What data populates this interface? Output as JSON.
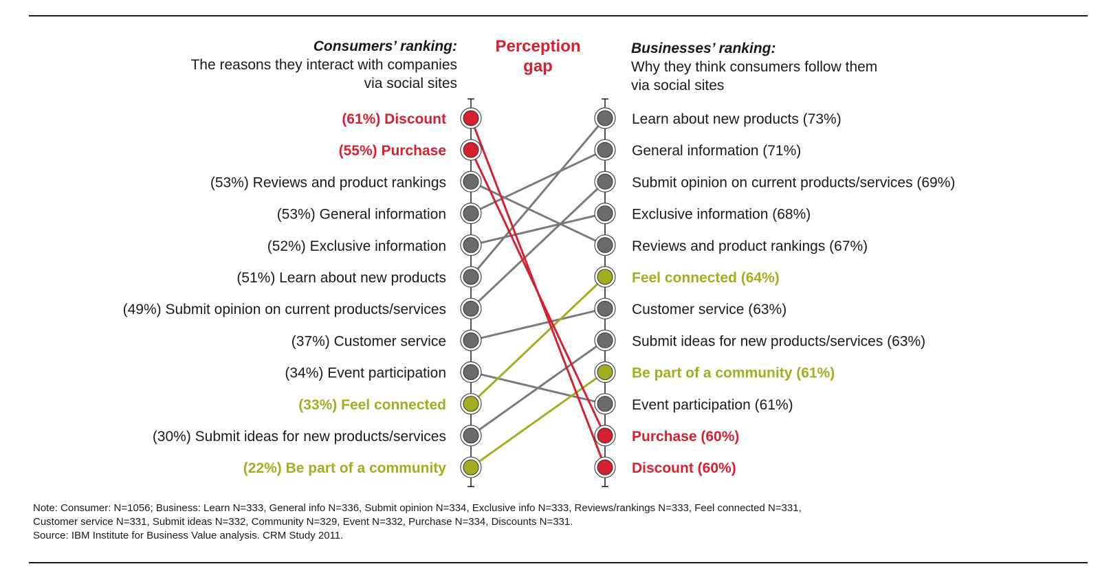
{
  "header_left": {
    "title": "Consumers’ ranking:",
    "line1": "The reasons they interact with companies",
    "line2": "via social sites"
  },
  "header_right": {
    "title": "Businesses’ ranking:",
    "line1": "Why they think consumers follow them",
    "line2": "via social sites"
  },
  "gap_title": {
    "line1": "Perception",
    "line2": "gap"
  },
  "colors": {
    "red": "#d4202f",
    "olive": "#a2ad1f",
    "gray": "#6b6b6b",
    "line_gray": "#7a7a7a"
  },
  "chart_data": {
    "type": "slope",
    "left_series": "Consumers’ ranking",
    "right_series": "Businesses’ ranking",
    "left": [
      {
        "key": "discount",
        "label": "(61%) Discount",
        "value": 61,
        "group": "red"
      },
      {
        "key": "purchase",
        "label": "(55%) Purchase",
        "value": 55,
        "group": "red"
      },
      {
        "key": "reviews",
        "label": "(53%) Reviews and product rankings",
        "value": 53,
        "group": "gray"
      },
      {
        "key": "general",
        "label": "(53%) General information",
        "value": 53,
        "group": "gray"
      },
      {
        "key": "exclusive",
        "label": "(52%) Exclusive information",
        "value": 52,
        "group": "gray"
      },
      {
        "key": "learn",
        "label": "(51%) Learn about new products",
        "value": 51,
        "group": "gray"
      },
      {
        "key": "opinion",
        "label": "(49%) Submit opinion on current products/services",
        "value": 49,
        "group": "gray"
      },
      {
        "key": "service",
        "label": "(37%) Customer service",
        "value": 37,
        "group": "gray"
      },
      {
        "key": "event",
        "label": "(34%) Event participation",
        "value": 34,
        "group": "gray"
      },
      {
        "key": "connected",
        "label": "(33%) Feel connected",
        "value": 33,
        "group": "olive"
      },
      {
        "key": "ideas",
        "label": "(30%) Submit ideas for new products/services",
        "value": 30,
        "group": "gray"
      },
      {
        "key": "community",
        "label": "(22%) Be part of a community",
        "value": 22,
        "group": "olive"
      }
    ],
    "right": [
      {
        "key": "learn",
        "label": "Learn about new products (73%)",
        "value": 73,
        "group": "gray"
      },
      {
        "key": "general",
        "label": "General information (71%)",
        "value": 71,
        "group": "gray"
      },
      {
        "key": "opinion",
        "label": "Submit opinion on current products/services (69%)",
        "value": 69,
        "group": "gray"
      },
      {
        "key": "exclusive",
        "label": "Exclusive information (68%)",
        "value": 68,
        "group": "gray"
      },
      {
        "key": "reviews",
        "label": "Reviews and product rankings (67%)",
        "value": 67,
        "group": "gray"
      },
      {
        "key": "connected",
        "label": "Feel connected (64%)",
        "value": 64,
        "group": "olive"
      },
      {
        "key": "service",
        "label": "Customer service (63%)",
        "value": 63,
        "group": "gray"
      },
      {
        "key": "ideas",
        "label": "Submit ideas for new products/services (63%)",
        "value": 63,
        "group": "gray"
      },
      {
        "key": "community",
        "label": "Be part of a community (61%)",
        "value": 61,
        "group": "olive"
      },
      {
        "key": "event",
        "label": "Event participation (61%)",
        "value": 61,
        "group": "gray"
      },
      {
        "key": "purchase",
        "label": "Purchase (60%)",
        "value": 60,
        "group": "red"
      },
      {
        "key": "discount",
        "label": "Discount (60%)",
        "value": 60,
        "group": "red"
      }
    ]
  },
  "note": {
    "line1": "Note: Consumer: N=1056; Business: Learn N=333, General info N=336, Submit opinion N=334, Exclusive info N=333, Reviews/rankings N=333, Feel connected N=331,",
    "line2": "Customer service N=331, Submit ideas N=332, Community N=329, Event N=332, Purchase N=334, Discounts N=331.",
    "line3": "Source: IBM Institute for Business Value analysis. CRM Study 2011."
  }
}
